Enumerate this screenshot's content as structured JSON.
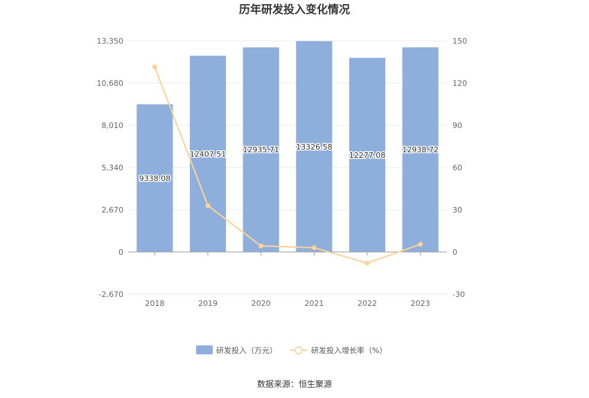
{
  "chart_data": {
    "type": "bar",
    "title": "历年研发投入变化情况",
    "categories": [
      "2018",
      "2019",
      "2020",
      "2021",
      "2022",
      "2023"
    ],
    "series": [
      {
        "name": "研发投入（万元）",
        "type": "bar",
        "axis": "left",
        "values": [
          9338.08,
          12407.51,
          12935.71,
          13326.58,
          12277.08,
          12938.72
        ],
        "labels": [
          "9338.08",
          "12407.51",
          "12935.71",
          "13326.58",
          "12277.08",
          "12938.72"
        ],
        "color": "#8eaedb"
      },
      {
        "name": "研发投入增长率（%）",
        "type": "line",
        "axis": "right",
        "values": [
          131.5,
          32.9,
          4.3,
          3.0,
          -7.9,
          5.4
        ],
        "color": "#f9d39a"
      }
    ],
    "y_left": {
      "ticks": [
        "-2,670",
        "0",
        "2,670",
        "5,340",
        "8,010",
        "10,680",
        "13,350"
      ],
      "min": -2670,
      "max": 13350
    },
    "y_right": {
      "ticks": [
        "-30",
        "0",
        "30",
        "60",
        "90",
        "120",
        "150"
      ],
      "min": -30,
      "max": 150
    },
    "grid": true,
    "legend_position": "bottom"
  },
  "source_text": "数据来源：恒生聚源"
}
